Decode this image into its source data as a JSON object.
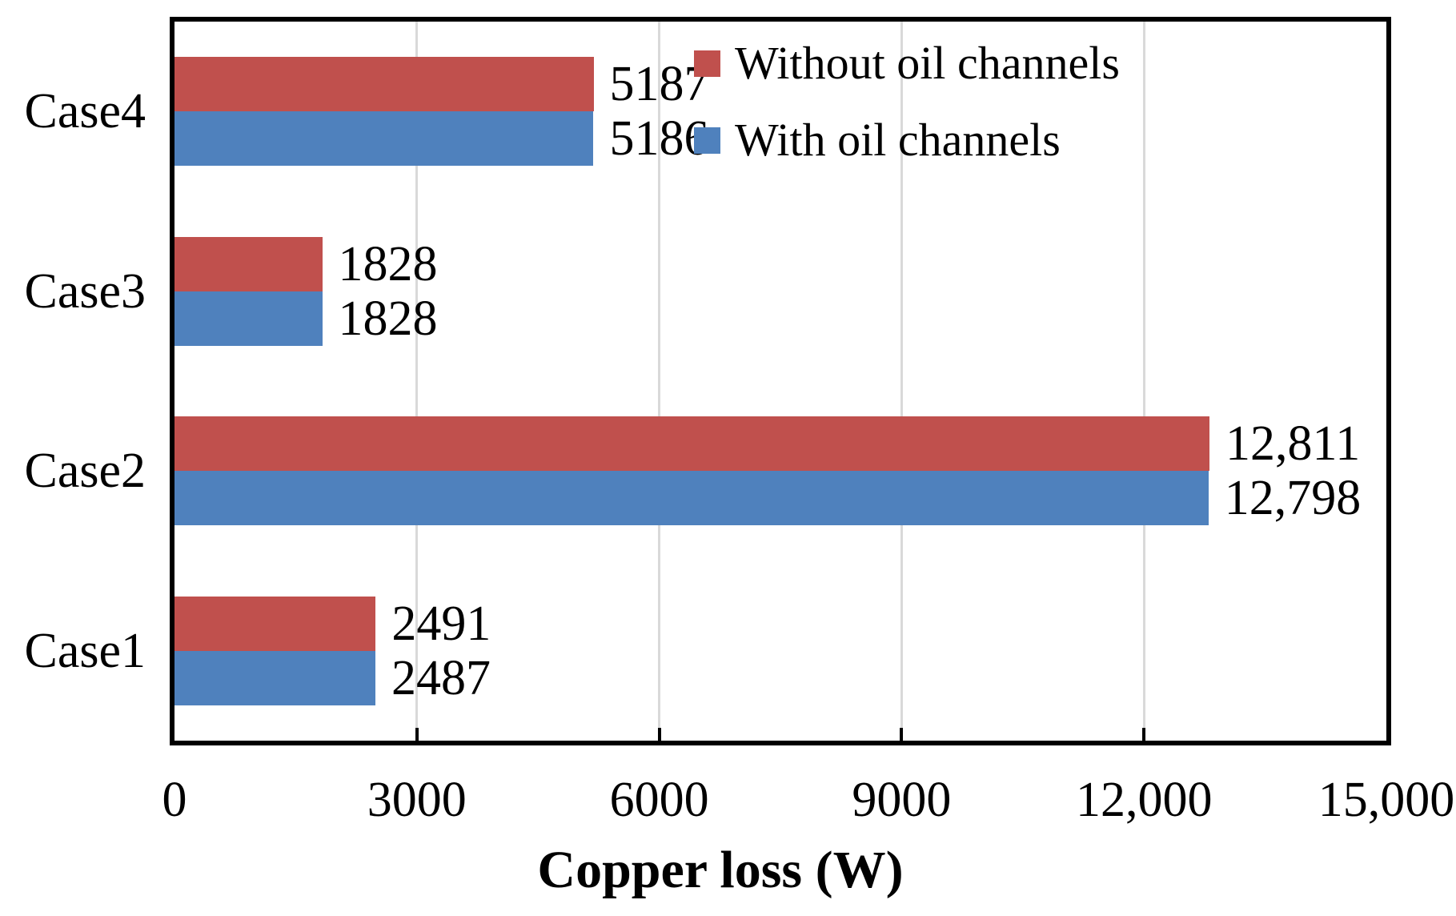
{
  "chart_data": {
    "type": "bar",
    "orientation": "horizontal",
    "title": "",
    "xlabel": "Copper loss (W)",
    "ylabel": "",
    "categories": [
      "Case1",
      "Case2",
      "Case3",
      "Case4"
    ],
    "category_display_order_top_to_bottom": [
      "Case4",
      "Case3",
      "Case2",
      "Case1"
    ],
    "series": [
      {
        "name": "Without oil channels",
        "color": "#c0504d",
        "values": [
          2491,
          12811,
          1828,
          5187
        ],
        "value_labels": [
          "2491",
          "12,811",
          "1828",
          "5187"
        ]
      },
      {
        "name": "With oil channels",
        "color": "#4f81bd",
        "values": [
          2487,
          12798,
          1828,
          5186
        ],
        "value_labels": [
          "2487",
          "12,798",
          "1828",
          "5186"
        ]
      }
    ],
    "xlim": [
      0,
      15000
    ],
    "xticks": [
      0,
      3000,
      6000,
      9000,
      12000,
      15000
    ],
    "xtick_labels": [
      "0",
      "3000",
      "6000",
      "9000",
      "12,000",
      "15,000"
    ],
    "grid": "vertical-gridlines-on",
    "gridline_color": "#d9d9d9",
    "axis_color": "#000000",
    "legend_position": "top-right-inside"
  }
}
